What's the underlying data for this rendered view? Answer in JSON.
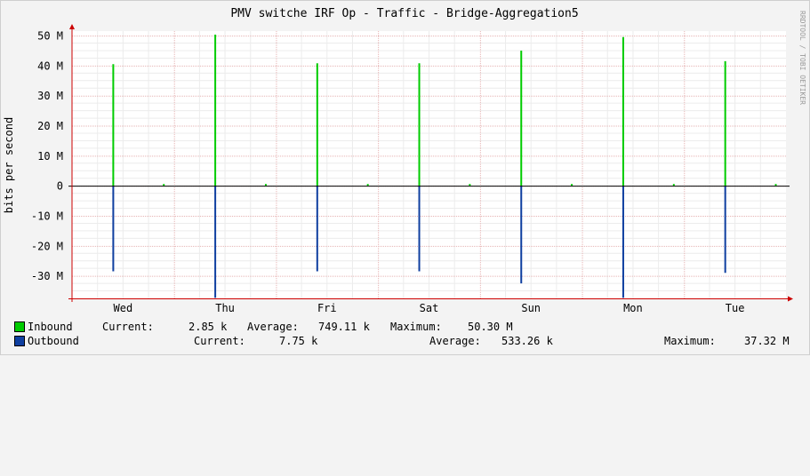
{
  "chart_data": {
    "type": "line",
    "title": "PMV switche IRF Op - Traffic - Bridge-Aggregation5",
    "ylabel": "bits per second",
    "watermark": "RRDTOOL / TOBI OETIKER",
    "x_tick_labels": [
      "Wed",
      "Thu",
      "Fri",
      "Sat",
      "Sun",
      "Mon",
      "Tue"
    ],
    "y_tick_labels": [
      "50 M",
      "40 M",
      "30 M",
      "20 M",
      "10 M",
      "0",
      "-10 M",
      "-20 M",
      "-30 M"
    ],
    "y_ticks": [
      50,
      40,
      30,
      20,
      10,
      0,
      -10,
      -20,
      -30
    ],
    "ylim": [
      -37.5,
      51.5
    ],
    "xlim": [
      0,
      7
    ],
    "grid": true,
    "colors": {
      "inbound": "#00cc00",
      "outbound": "#0f3fa0",
      "grid": "#e6b3b3",
      "axis": "#cc0000"
    },
    "series": [
      {
        "name": "Inbound",
        "x": [
          0.4,
          1.4,
          2.4,
          3.4,
          4.4,
          5.4,
          6.4
        ],
        "values": [
          40.5,
          50.3,
          40.8,
          40.8,
          45.0,
          49.5,
          41.5
        ]
      },
      {
        "name": "Outbound",
        "x": [
          0.4,
          1.4,
          2.4,
          3.4,
          4.4,
          5.4,
          6.4
        ],
        "values": [
          -28.5,
          -37.32,
          -28.5,
          -28.5,
          -32.5,
          -37.32,
          -29.0
        ]
      }
    ]
  },
  "legend": {
    "inbound": {
      "name": "Inbound",
      "current_label": "Current:",
      "current": "2.85 k",
      "average_label": "Average:",
      "average": "749.11 k",
      "maximum_label": "Maximum:",
      "maximum": "50.30 M"
    },
    "outbound": {
      "name": "Outbound",
      "current_label": "Current:",
      "current": "7.75 k",
      "average_label": "Average:",
      "average": "533.26 k",
      "maximum_label": "Maximum:",
      "maximum": "37.32 M"
    }
  }
}
